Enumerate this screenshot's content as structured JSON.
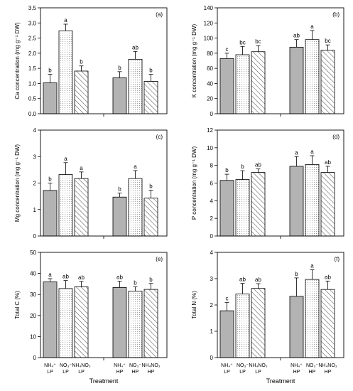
{
  "xlabel": "Treatment",
  "x_tick_labels": [
    [
      "NH₄⁺",
      "LP"
    ],
    [
      "NO₃⁻",
      "LP"
    ],
    [
      "NH₄NO₃",
      "LP"
    ],
    [
      "NH₄⁺",
      "HP"
    ],
    [
      "NO₃⁻",
      "HP"
    ],
    [
      "NH₄NO₃",
      "HP"
    ]
  ],
  "fills": [
    "solid-gray",
    "dotted",
    "hatched",
    "solid-gray",
    "dotted",
    "hatched"
  ],
  "colors": {
    "bar_gray": "#b3b3b3",
    "axis": "#000000"
  },
  "chart_data": [
    {
      "panel": "(a)",
      "type": "bar",
      "ylabel": "Ca concentration (mg g⁻¹ DW)",
      "ylim": [
        0,
        3.5
      ],
      "ticks": [
        0.0,
        0.5,
        1.0,
        1.5,
        2.0,
        2.5,
        3.0,
        3.5
      ],
      "tick_labels": [
        "0.0",
        "0.5",
        "1.0",
        "1.5",
        "2.0",
        "2.5",
        "3.0",
        "3.5"
      ],
      "values": [
        1.02,
        2.74,
        1.41,
        1.19,
        1.8,
        1.07
      ],
      "errors": [
        0.28,
        0.22,
        0.17,
        0.2,
        0.26,
        0.23
      ],
      "letters": [
        "b",
        "a",
        "b",
        "b",
        "ab",
        "b"
      ]
    },
    {
      "panel": "(b)",
      "type": "bar",
      "ylabel": "K concentration (mg g⁻¹ DW)",
      "ylim": [
        0,
        140
      ],
      "ticks": [
        0,
        20,
        40,
        60,
        80,
        100,
        120,
        140
      ],
      "tick_labels": [
        "0",
        "20",
        "40",
        "60",
        "80",
        "100",
        "120",
        "140"
      ],
      "values": [
        73,
        78,
        82,
        88,
        98,
        84
      ],
      "errors": [
        7,
        11,
        8,
        10,
        12,
        7
      ],
      "letters": [
        "c",
        "bc",
        "bc",
        "ab",
        "a",
        "bc"
      ]
    },
    {
      "panel": "(c)",
      "type": "bar",
      "ylabel": "Mg concentration (mg g⁻¹ DW)",
      "ylim": [
        0,
        4
      ],
      "ticks": [
        0,
        1,
        2,
        3,
        4
      ],
      "tick_labels": [
        "0",
        "1",
        "2",
        "3",
        "4"
      ],
      "values": [
        1.72,
        2.32,
        2.17,
        1.47,
        2.17,
        1.43
      ],
      "errors": [
        0.28,
        0.45,
        0.25,
        0.15,
        0.3,
        0.3
      ],
      "letters": [
        "b",
        "a",
        "a",
        "b",
        "a",
        "b"
      ]
    },
    {
      "panel": "(d)",
      "type": "bar",
      "ylabel": "P concentration (mg g⁻¹ DW)",
      "ylim": [
        0,
        12
      ],
      "ticks": [
        0,
        2,
        4,
        6,
        8,
        10,
        12
      ],
      "tick_labels": [
        "0",
        "2",
        "4",
        "6",
        "8",
        "10",
        "12"
      ],
      "values": [
        6.3,
        6.4,
        7.2,
        7.9,
        8.1,
        7.2
      ],
      "errors": [
        0.7,
        1.0,
        0.4,
        1.1,
        1.0,
        0.7
      ],
      "letters": [
        "b",
        "b",
        "ab",
        "a",
        "a",
        "ab"
      ]
    },
    {
      "panel": "(e)",
      "type": "bar",
      "ylabel": "Total C (%)",
      "ylim": [
        0,
        50
      ],
      "ticks": [
        0,
        10,
        20,
        30,
        40,
        50
      ],
      "tick_labels": [
        "0",
        "10",
        "20",
        "30",
        "40",
        "50"
      ],
      "values": [
        36,
        32.8,
        33.6,
        33.3,
        31.6,
        32.4
      ],
      "errors": [
        1.5,
        3.8,
        2.6,
        3.0,
        2.0,
        2.8
      ],
      "letters": [
        "a",
        "ab",
        "ab",
        "ab",
        "b",
        "b"
      ]
    },
    {
      "panel": "(f)",
      "type": "bar",
      "ylabel": "Total N (%)",
      "ylim": [
        0,
        4
      ],
      "ticks": [
        0,
        1,
        2,
        3,
        4
      ],
      "tick_labels": [
        "0",
        "1",
        "2",
        "3",
        "4"
      ],
      "values": [
        1.78,
        2.42,
        2.63,
        2.33,
        2.97,
        2.59
      ],
      "errors": [
        0.32,
        0.4,
        0.18,
        0.7,
        0.37,
        0.32
      ],
      "letters": [
        "c",
        "ab",
        "ab",
        "b",
        "a",
        "ab"
      ]
    }
  ]
}
